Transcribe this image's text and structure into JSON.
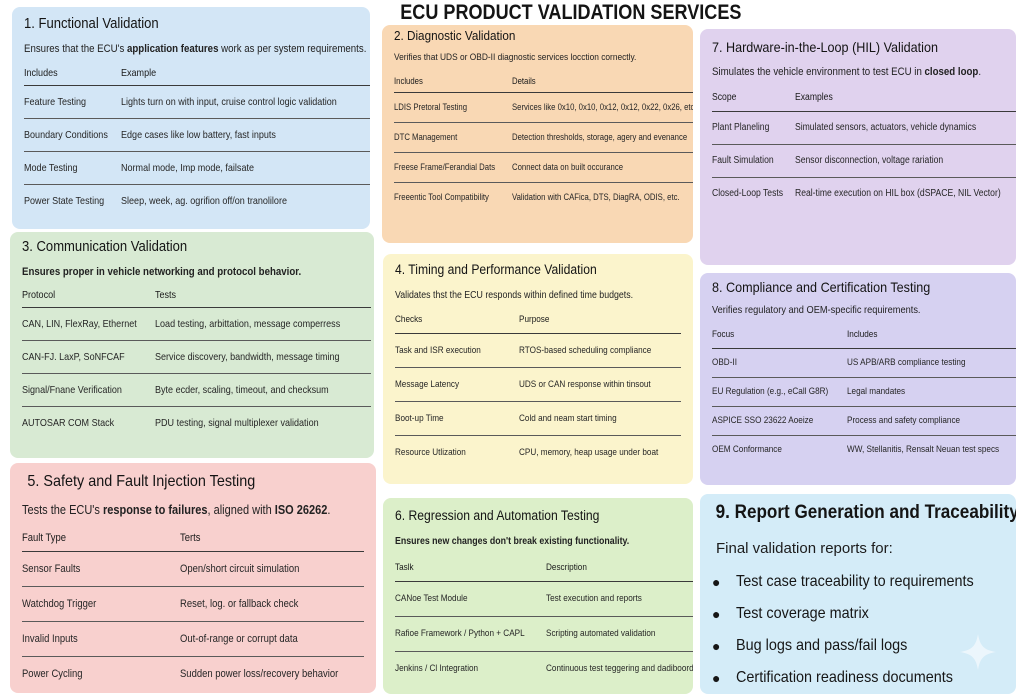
{
  "title": "ECU PRODUCT VALIDATION SERVICES",
  "panels": {
    "p1": {
      "title": "1. Functional Validation",
      "sub_pre": "Ensures that the ECU's ",
      "sub_bold": "application features",
      "sub_post": " work as per system requirements.",
      "headers": [
        "Includes",
        "Example"
      ],
      "rows": [
        [
          "Feature Testing",
          "Lights turn on with input, cruise control logic validation"
        ],
        [
          "Boundary Conditions",
          "Edge cases like low battery, fast inputs"
        ],
        [
          "Mode Testing",
          "Normal mode, Imp mode, failsate"
        ],
        [
          "Power State Testing",
          "Sleep, week, ag. ogrifion off/on tranolilore"
        ]
      ]
    },
    "p2": {
      "title": "2. Diagnostic Validation",
      "sub": "Verifies that UDS or OBD-II diagnostic services locction cornectly.",
      "headers": [
        "Includes",
        "Details"
      ],
      "rows": [
        [
          "LDIS Pretoral Testing",
          "Services like 0x10, 0x10, 0x12, 0x12, 0x22, 0x26, etc."
        ],
        [
          "DTC Management",
          "Detection thresholds, storage, agery and evenance"
        ],
        [
          "Freese Frame/Ferandial Dats",
          "Connect data on built occurance"
        ],
        [
          "Freeentic Tool Compatibility",
          "Validation with CAFica, DTS, DiagRA, ODIS, etc."
        ]
      ]
    },
    "p3": {
      "title": "3. Communication Validation",
      "sub": "Ensures proper in vehicle networking and protocol behavior.",
      "headers": [
        "Protocol",
        "Tests"
      ],
      "rows": [
        [
          "CAN, LIN, FlexRay, Ethernet",
          "Load testing, arbittation, message comperress"
        ],
        [
          "CAN-FJ. LaxP, SoNFCAF",
          "Service discovery, bandwidth, message timing"
        ],
        [
          "Signal/Fnane Verification",
          "Byte ecder, scaling, timeout, and checksum"
        ],
        [
          "AUTOSAR COM Stack",
          "PDU testing, signal multiplexer validation"
        ]
      ]
    },
    "p4": {
      "title": "4. Timing and Performance Validation",
      "sub": "Validates thst the ECU responds within defined time budgets.",
      "headers": [
        "Checks",
        "Purpose"
      ],
      "rows": [
        [
          "Task and ISR execution",
          "RTOS-based scheduling compliance"
        ],
        [
          "Message Latency",
          "UDS or CAN response within tinsout"
        ],
        [
          "Boot-up Time",
          "Cold and neam start timing"
        ],
        [
          "Resource Utlization",
          "CPU, memory, heap usage under boat"
        ]
      ]
    },
    "p5": {
      "title": "5. Safety and Fault Injection Testing",
      "sub_pre": "Tests the ECU's ",
      "sub_bold": "response to failures",
      "sub_post": ", aligned with ",
      "sub_bold2": "ISO 26262",
      "sub_end": ".",
      "headers": [
        "Fault Type",
        "Terts"
      ],
      "rows": [
        [
          "Sensor Faults",
          "Open/short circuit simulation"
        ],
        [
          "Watchdog Trigger",
          "Reset, log. or fallback check"
        ],
        [
          "Invalid Inputs",
          "Out-of-range or corrupt data"
        ],
        [
          "Power Cycling",
          "Sudden power loss/recovery behavior"
        ]
      ]
    },
    "p6": {
      "title": "6. Regression and Automation Testing",
      "sub": "Ensures new changes don't break existing functionality.",
      "headers": [
        "Taslk",
        "Description"
      ],
      "rows": [
        [
          "CANoe Test Module",
          "Test execution and reports"
        ],
        [
          "Rafioe Framework / Python + CAPL",
          "Scripting automated validation"
        ],
        [
          "Jenkins / Cl Integration",
          "Continuous test teggering and dadiboords"
        ]
      ]
    },
    "p7": {
      "title": "7. Hardware-in-the-Loop (HIL) Validation",
      "sub_pre": "Simulates the vehicle environment to test ECU in ",
      "sub_bold": "closed loop",
      "sub_post": ".",
      "headers": [
        "Scope",
        "Examples"
      ],
      "rows": [
        [
          "Plant Planeling",
          "Simulated sensors, actuators, vehicle dynamics"
        ],
        [
          "Fault Simulation",
          "Sensor disconnection, voltage rariation"
        ],
        [
          "Closed-Loop Tests",
          "Real-time execution on HIL box (dSPACE, NIL Vector)"
        ]
      ]
    },
    "p8": {
      "title": "8. Compliance and Certification Testing",
      "sub": "Verifies regulatory and OEM-specific requirements.",
      "headers": [
        "Focus",
        "Includes"
      ],
      "rows": [
        [
          "OBD-II",
          "US APB/ARB compliance testing"
        ],
        [
          "EU Regulation (e.g., eCall G8R)",
          "Legal mandates"
        ],
        [
          "ASPICE SSO 23622 Aoeize",
          "Process and safety compliance"
        ],
        [
          "OEM Conformance",
          "WW, Stellanitis, Rensalt Neuan test specs"
        ]
      ]
    },
    "p9": {
      "title": "9. Report Generation and Traceability",
      "sub": "Final validation reports for:",
      "bullets": [
        "Test case traceability to requirements",
        "Test coverage matrix",
        "Bug logs and pass/fail logs",
        "Certification readiness documents"
      ]
    }
  },
  "colors": {
    "p1": "#d3e6f6",
    "p2": "#f9d8b4",
    "p3": "#d8ead3",
    "p4": "#fbf4cc",
    "p5": "#f8d0ce",
    "p6": "#dcefc9",
    "p7": "#e0d2ee",
    "p8": "#d6d1f1",
    "p9": "#d4ecf8"
  },
  "icons": {
    "corner": "sparkle-icon",
    "bullet": "bullet-icon"
  }
}
